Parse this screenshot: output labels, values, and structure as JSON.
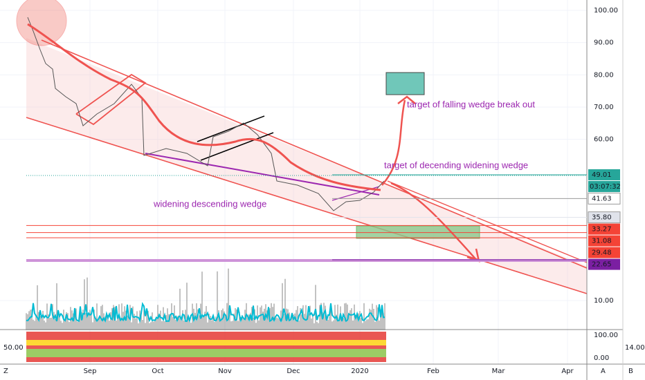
{
  "price_axis": {
    "ticks": [
      {
        "value": 100,
        "label": "100.00"
      },
      {
        "value": 90,
        "label": "90.00"
      },
      {
        "value": 80,
        "label": "80.00"
      },
      {
        "value": 70,
        "label": "70.00"
      },
      {
        "value": 60,
        "label": "60.00"
      },
      {
        "value": 10,
        "label": "10.00"
      }
    ]
  },
  "price_tags": [
    {
      "value": 49.01,
      "label": "49.01",
      "color": "#26a69a"
    },
    {
      "value": 41.63,
      "label": "41.63",
      "color": "#ffffff"
    },
    {
      "value": 35.8,
      "label": "35.80",
      "color": "#e0e3eb"
    },
    {
      "value": 33.27,
      "label": "33.27",
      "color": "#f44336"
    },
    {
      "value": 31.08,
      "label": "31.08",
      "color": "#f44336"
    },
    {
      "value": 29.48,
      "label": "29.48",
      "color": "#f44336"
    },
    {
      "value": 22.65,
      "label": "22.65",
      "color": "#7b1fa2"
    }
  ],
  "countdown": "03:07:32",
  "time_axis": [
    "Sep",
    "Oct",
    "Nov",
    "Dec",
    "2020",
    "Feb",
    "Mar",
    "Apr"
  ],
  "annotations": {
    "falling_wedge": "target of falling wedge break out",
    "descending_widening": "target of decending widening wedge",
    "widening_descending": "widening descending wedge"
  },
  "indicator": {
    "left_label": "50.00",
    "top_label": "100.00",
    "bottom_label": "0.00",
    "side_label": "14.00"
  },
  "corner_labels": {
    "left": "Z",
    "a": "A",
    "b": "B"
  }
}
